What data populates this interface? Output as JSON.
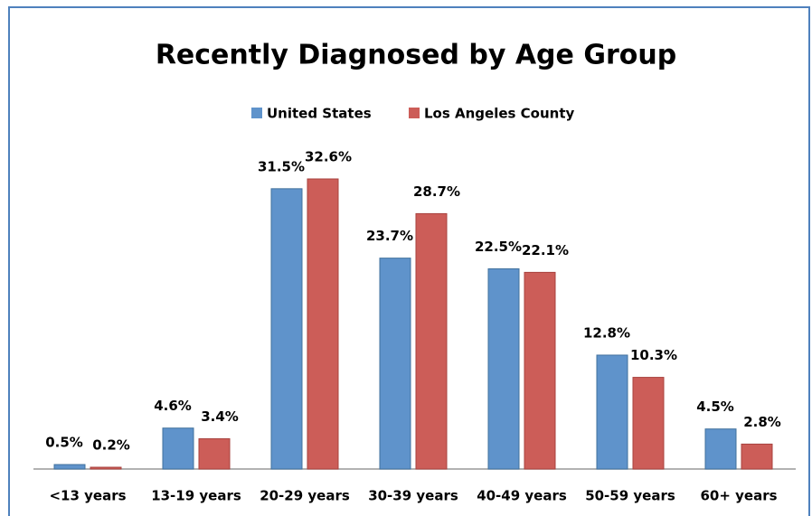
{
  "chart_data": {
    "type": "bar",
    "title": "Recently Diagnosed by Age Group",
    "categories": [
      "<13 years",
      "13-19 years",
      "20-29 years",
      "30-39 years",
      "40-49 years",
      "50-59 years",
      "60+ years"
    ],
    "series": [
      {
        "name": "United States",
        "color": "#5f93cb",
        "values": [
          0.5,
          4.6,
          31.5,
          23.7,
          22.5,
          12.8,
          4.5
        ],
        "value_labels": [
          "0.5%",
          "4.6%",
          "31.5%",
          "23.7%",
          "22.5%",
          "12.8%",
          "4.5%"
        ]
      },
      {
        "name": "Los Angeles County",
        "color": "#cc5d58",
        "values": [
          0.2,
          3.4,
          32.6,
          28.7,
          22.1,
          10.3,
          2.8
        ],
        "value_labels": [
          "0.2%",
          "3.4%",
          "32.6%",
          "28.7%",
          "22.1%",
          "10.3%",
          "2.8%"
        ]
      }
    ],
    "legend": "top"
  }
}
